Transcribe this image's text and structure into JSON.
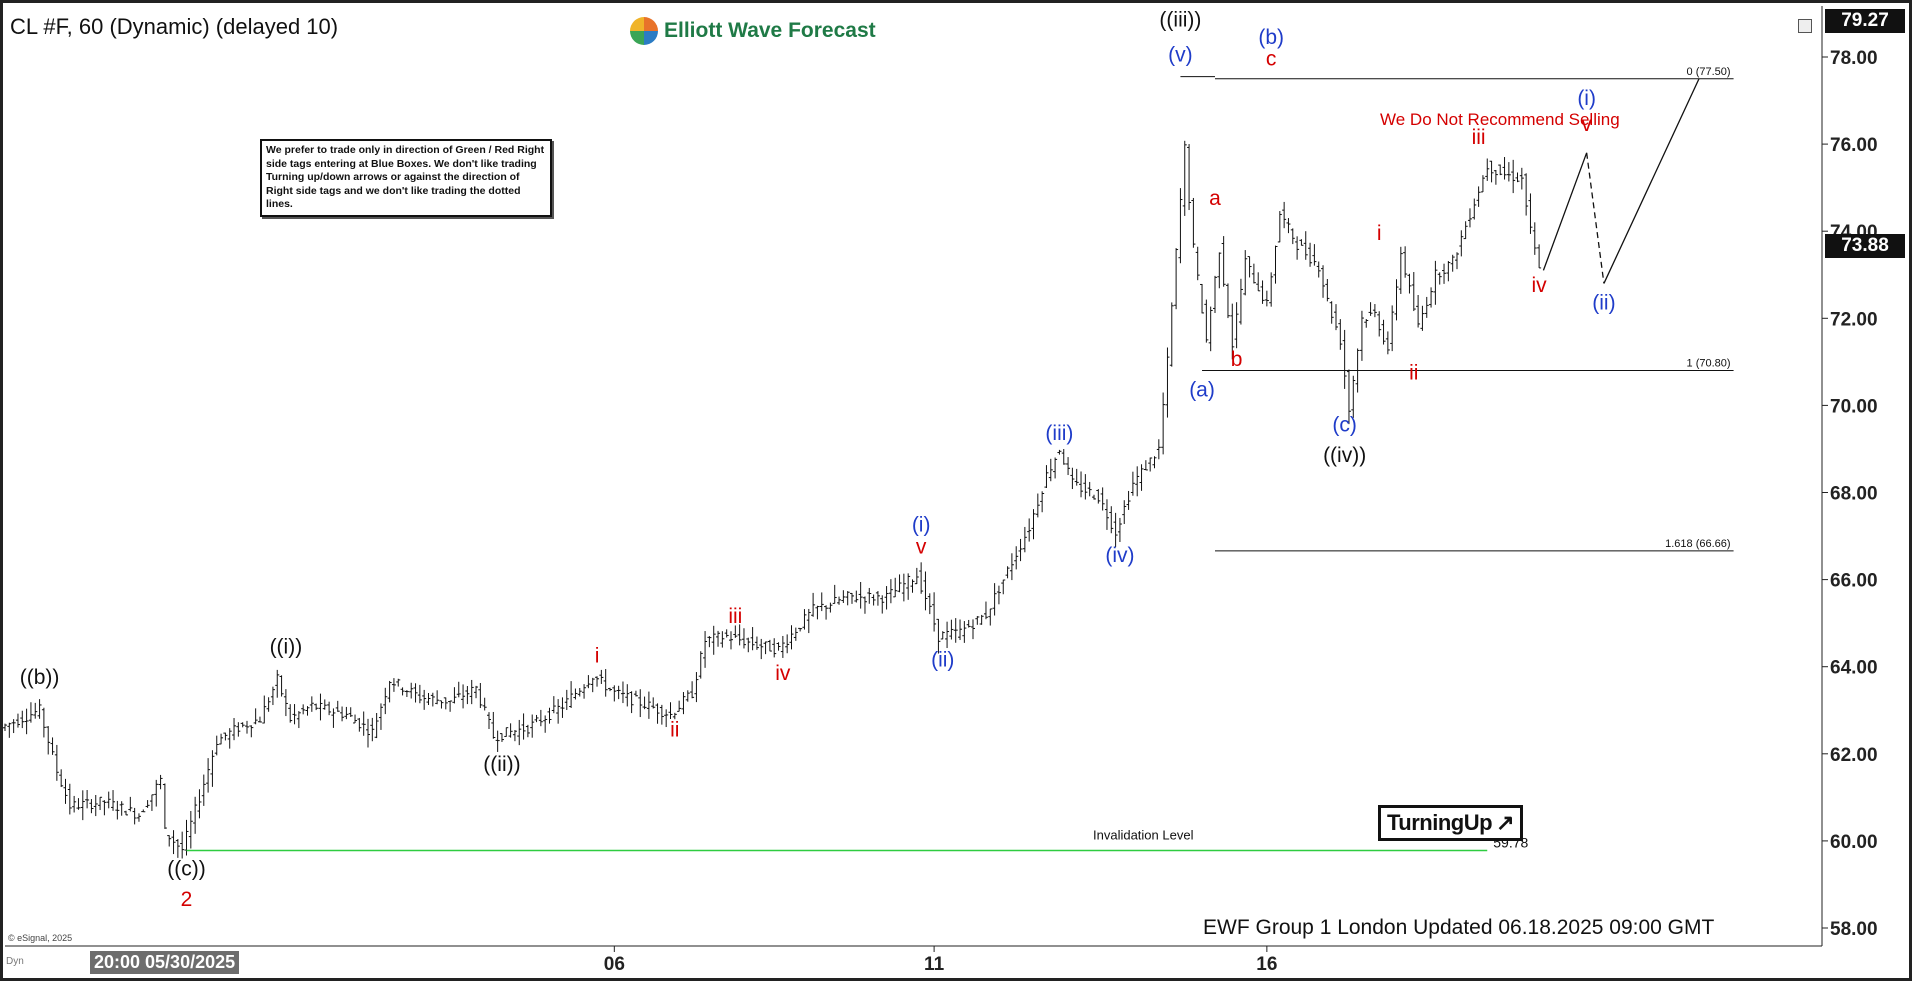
{
  "header": {
    "title": "CL #F, 60 (Dynamic) (delayed 10)"
  },
  "logo": {
    "text": "Elliott Wave Forecast"
  },
  "note": {
    "text": "We prefer to trade only in direction of Green / Red Right side tags entering at Blue Boxes. We don't like trading Turning up/down arrows or against the direction of Right side tags and we don't like trading the dotted lines."
  },
  "recommendation": "We Do Not Recommend Selling",
  "turning_badge": {
    "text": "TurningUp",
    "arrow": "↗"
  },
  "footer": {
    "updated": "EWF Group 1 London Updated 06.18.2025 09:00 GMT"
  },
  "esignal": "© eSignal, 2025",
  "dyn": "Dyn",
  "cursor_date": "20:00 05/30/2025",
  "price_boxes": {
    "high": "79.27",
    "last": "73.88"
  },
  "colors": {
    "blue": "#1f3cc9",
    "red": "#d40000",
    "black": "#111111",
    "green": "#2ecc40"
  },
  "chart_data": {
    "type": "ohlc-bar",
    "symbol": "CL #F",
    "interval": "60",
    "ylim": [
      57.5,
      79.5
    ],
    "yticks": [
      "58.00",
      "60.00",
      "62.00",
      "64.00",
      "66.00",
      "68.00",
      "70.00",
      "72.00",
      "74.00",
      "76.00",
      "78.00"
    ],
    "xlim": [
      0,
      420
    ],
    "xticks": [
      {
        "label": "06",
        "x": 141
      },
      {
        "label": "11",
        "x": 215
      },
      {
        "label": "16",
        "x": 292
      }
    ],
    "path": [
      [
        0,
        62.6
      ],
      [
        9,
        63.0
      ],
      [
        13,
        61.6
      ],
      [
        16,
        60.8
      ],
      [
        24,
        60.9
      ],
      [
        32,
        60.6
      ],
      [
        37,
        61.4
      ],
      [
        38,
        60.2
      ],
      [
        42,
        59.8
      ],
      [
        46,
        61.0
      ],
      [
        50,
        62.3
      ],
      [
        55,
        62.6
      ],
      [
        60,
        62.8
      ],
      [
        64,
        63.7
      ],
      [
        67,
        62.8
      ],
      [
        72,
        63.1
      ],
      [
        80,
        62.9
      ],
      [
        86,
        62.5
      ],
      [
        90,
        63.7
      ],
      [
        97,
        63.3
      ],
      [
        104,
        63.2
      ],
      [
        110,
        63.5
      ],
      [
        114,
        62.4
      ],
      [
        122,
        62.6
      ],
      [
        130,
        63.1
      ],
      [
        137,
        63.8
      ],
      [
        142,
        63.4
      ],
      [
        150,
        63.1
      ],
      [
        155,
        62.9
      ],
      [
        160,
        63.4
      ],
      [
        163,
        64.6
      ],
      [
        168,
        64.7
      ],
      [
        175,
        64.5
      ],
      [
        180,
        64.4
      ],
      [
        188,
        65.3
      ],
      [
        196,
        65.6
      ],
      [
        205,
        65.6
      ],
      [
        212,
        66.1
      ],
      [
        214,
        65.6
      ],
      [
        217,
        64.7
      ],
      [
        222,
        64.8
      ],
      [
        228,
        65.2
      ],
      [
        232,
        66.0
      ],
      [
        238,
        67.2
      ],
      [
        242,
        68.4
      ],
      [
        245,
        69.0
      ],
      [
        248,
        68.2
      ],
      [
        254,
        67.9
      ],
      [
        258,
        67.1
      ],
      [
        262,
        68.2
      ],
      [
        268,
        69.0
      ],
      [
        270,
        71.0
      ],
      [
        272,
        73.5
      ],
      [
        274,
        75.9
      ],
      [
        276,
        73.6
      ],
      [
        279,
        71.5
      ],
      [
        282,
        73.6
      ],
      [
        285,
        71.4
      ],
      [
        288,
        73.3
      ],
      [
        293,
        72.3
      ],
      [
        296,
        74.4
      ],
      [
        300,
        73.7
      ],
      [
        305,
        73.2
      ],
      [
        307,
        72.4
      ],
      [
        310,
        71.5
      ],
      [
        312,
        69.9
      ],
      [
        315,
        72.0
      ],
      [
        318,
        72.1
      ],
      [
        321,
        71.3
      ],
      [
        324,
        73.5
      ],
      [
        328,
        71.8
      ],
      [
        332,
        73.0
      ],
      [
        336,
        73.3
      ],
      [
        340,
        74.4
      ],
      [
        344,
        75.5
      ],
      [
        348,
        75.3
      ],
      [
        352,
        75.2
      ],
      [
        354,
        74.0
      ],
      [
        356,
        73.1
      ]
    ],
    "projection": [
      {
        "points": [
          [
            356,
            73.1
          ],
          [
            366,
            75.8
          ]
        ],
        "style": "solid"
      },
      {
        "points": [
          [
            366,
            75.8
          ],
          [
            370,
            72.8
          ]
        ],
        "style": "dashed"
      },
      {
        "points": [
          [
            370,
            72.8
          ],
          [
            392,
            77.5
          ]
        ],
        "style": "solid"
      }
    ],
    "reference_lines": [
      {
        "label": "0 (77.50)",
        "y": 77.5,
        "x_from": 280,
        "x_to": 400
      },
      {
        "label": "1 (70.80)",
        "y": 70.8,
        "x_from": 280,
        "x_to": 400
      },
      {
        "label": "1.618 (66.66)",
        "y": 66.66,
        "x_from": 280,
        "x_to": 400
      },
      {
        "label": "",
        "y": 77.55,
        "x_from": 272,
        "x_to": 280
      },
      {
        "label": "",
        "y": 70.8,
        "x_from": 277,
        "x_to": 281
      }
    ],
    "invalidation": {
      "label": "Invalidation Level",
      "value": 59.78,
      "value_label": "59.78",
      "x_from": 42,
      "x_to": 343
    },
    "labels": [
      {
        "text": "((b))",
        "x": 8,
        "y": 63.6,
        "color": "black"
      },
      {
        "text": "((i))",
        "x": 65,
        "y": 64.3,
        "color": "black"
      },
      {
        "text": "((c))",
        "x": 42,
        "y": 59.2,
        "color": "black"
      },
      {
        "text": "2",
        "x": 42,
        "y": 58.5,
        "color": "red"
      },
      {
        "text": "((ii))",
        "x": 115,
        "y": 61.6,
        "color": "black"
      },
      {
        "text": "i",
        "x": 137,
        "y": 64.1,
        "color": "red"
      },
      {
        "text": "ii",
        "x": 155,
        "y": 62.4,
        "color": "red"
      },
      {
        "text": "iii",
        "x": 169,
        "y": 65.0,
        "color": "red"
      },
      {
        "text": "iv",
        "x": 180,
        "y": 63.7,
        "color": "red"
      },
      {
        "text": "v",
        "x": 212,
        "y": 66.6,
        "color": "red"
      },
      {
        "text": "(i)",
        "x": 212,
        "y": 67.1,
        "color": "blue"
      },
      {
        "text": "(ii)",
        "x": 217,
        "y": 64.0,
        "color": "blue"
      },
      {
        "text": "(iii)",
        "x": 244,
        "y": 69.2,
        "color": "blue"
      },
      {
        "text": "(iv)",
        "x": 258,
        "y": 66.4,
        "color": "blue"
      },
      {
        "text": "((iii))",
        "x": 272,
        "y": 78.7,
        "color": "black"
      },
      {
        "text": "(v)",
        "x": 272,
        "y": 77.9,
        "color": "blue"
      },
      {
        "text": "a",
        "x": 280,
        "y": 74.6,
        "color": "red"
      },
      {
        "text": "b",
        "x": 285,
        "y": 70.9,
        "color": "red"
      },
      {
        "text": "(a)",
        "x": 277,
        "y": 70.2,
        "color": "blue"
      },
      {
        "text": "c",
        "x": 293,
        "y": 77.8,
        "color": "red"
      },
      {
        "text": "(b)",
        "x": 293,
        "y": 78.3,
        "color": "blue"
      },
      {
        "text": "(c)",
        "x": 310,
        "y": 69.4,
        "color": "blue"
      },
      {
        "text": "((iv))",
        "x": 310,
        "y": 68.7,
        "color": "black"
      },
      {
        "text": "i",
        "x": 318,
        "y": 73.8,
        "color": "red"
      },
      {
        "text": "ii",
        "x": 326,
        "y": 70.6,
        "color": "red"
      },
      {
        "text": "iii",
        "x": 341,
        "y": 76.0,
        "color": "red"
      },
      {
        "text": "iv",
        "x": 355,
        "y": 72.6,
        "color": "red"
      },
      {
        "text": "(i)",
        "x": 366,
        "y": 76.9,
        "color": "blue"
      },
      {
        "text": "v",
        "x": 366,
        "y": 76.3,
        "color": "red"
      },
      {
        "text": "(ii)",
        "x": 370,
        "y": 72.2,
        "color": "blue"
      }
    ]
  }
}
